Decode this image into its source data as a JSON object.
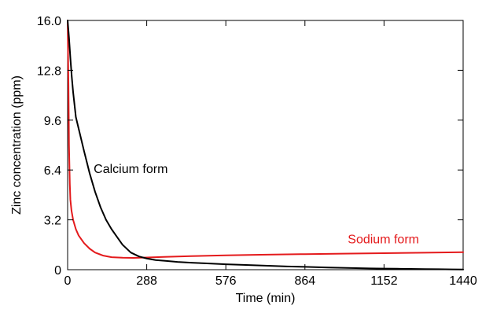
{
  "chart_data": {
    "type": "line",
    "title": "",
    "xlabel": "Time (min)",
    "ylabel": "Zinc concentration (ppm)",
    "xlim": [
      0,
      1440
    ],
    "ylim": [
      0,
      16.0
    ],
    "xticks": [
      0,
      288,
      576,
      864,
      1152,
      1440
    ],
    "xtick_labels": [
      "0",
      "288",
      "576",
      "864",
      "1152",
      "1440"
    ],
    "yticks": [
      0,
      3.2,
      6.4,
      9.6,
      12.8,
      16.0
    ],
    "ytick_labels": [
      "0",
      "3.2",
      "6.4",
      "9.6",
      "12.8",
      "16.0"
    ],
    "grid": false,
    "legend": "none",
    "series": [
      {
        "name": "Calcium form",
        "color": "#000000",
        "x": [
          0,
          5,
          10,
          15,
          20,
          30,
          45,
          60,
          80,
          100,
          120,
          140,
          160,
          180,
          200,
          230,
          260,
          288,
          320,
          360,
          400,
          450,
          500,
          576,
          650,
          700,
          750,
          800,
          864,
          950,
          1000,
          1050,
          1100,
          1152,
          1200,
          1250,
          1300,
          1350,
          1400,
          1440
        ],
        "y": [
          16.0,
          14.9,
          13.6,
          12.4,
          11.4,
          9.8,
          8.7,
          7.6,
          6.2,
          5.0,
          4.0,
          3.2,
          2.6,
          2.1,
          1.6,
          1.1,
          0.85,
          0.72,
          0.62,
          0.56,
          0.5,
          0.45,
          0.41,
          0.35,
          0.3,
          0.27,
          0.24,
          0.21,
          0.18,
          0.14,
          0.12,
          0.1,
          0.08,
          0.07,
          0.06,
          0.05,
          0.04,
          0.03,
          0.02,
          0.01
        ]
      },
      {
        "name": "Sodium form",
        "color": "#e41a1c",
        "x": [
          0,
          3,
          5,
          8,
          10,
          14,
          20,
          30,
          40,
          60,
          80,
          100,
          130,
          160,
          200,
          240,
          288,
          350,
          450,
          576,
          700,
          864,
          1000,
          1152,
          1300,
          1440
        ],
        "y": [
          16.0,
          12.0,
          8.0,
          5.5,
          4.5,
          3.8,
          3.2,
          2.6,
          2.2,
          1.7,
          1.35,
          1.1,
          0.9,
          0.8,
          0.77,
          0.76,
          0.78,
          0.82,
          0.87,
          0.92,
          0.96,
          1.0,
          1.03,
          1.06,
          1.09,
          1.12
        ]
      }
    ],
    "annotations": [
      {
        "text": "Calcium form",
        "x": 95,
        "y": 6.2,
        "color": "#000000"
      },
      {
        "text": "Sodium form",
        "x": 1020,
        "y": 1.7,
        "color": "#e41a1c"
      }
    ]
  }
}
